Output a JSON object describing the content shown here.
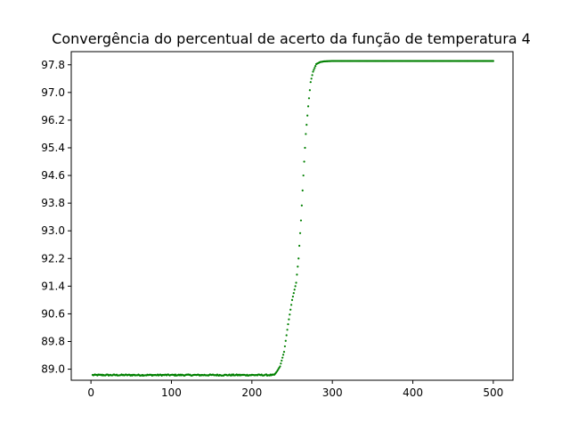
{
  "chart_data": {
    "type": "scatter",
    "title": "Convergência do percentual de acerto da função de temperatura 4",
    "xlabel": "",
    "ylabel": "",
    "xlim": [
      -24.5,
      524.5
    ],
    "ylim": [
      88.68,
      98.18
    ],
    "x_ticks": [
      0,
      100,
      200,
      300,
      400,
      500
    ],
    "x_tick_labels": [
      "0",
      "100",
      "200",
      "300",
      "400",
      "500"
    ],
    "y_ticks": [
      89.0,
      89.8,
      90.6,
      91.4,
      92.2,
      93.0,
      93.8,
      94.6,
      95.4,
      96.2,
      97.0,
      97.8
    ],
    "y_tick_labels": [
      "89.0",
      "89.8",
      "90.6",
      "91.4",
      "92.2",
      "93.0",
      "93.8",
      "94.6",
      "95.4",
      "96.2",
      "97.0",
      "97.8"
    ],
    "grid": false,
    "marker_color": "#008000",
    "series": [
      {
        "anchors": [
          [
            228,
            88.84
          ],
          [
            231,
            88.93
          ],
          [
            235,
            89.08
          ],
          [
            240,
            89.5
          ],
          [
            245,
            90.3
          ],
          [
            250,
            91.0
          ],
          [
            255,
            91.5
          ],
          [
            258,
            92.2
          ],
          [
            261,
            93.3
          ],
          [
            264,
            94.6
          ],
          [
            267,
            95.8
          ],
          [
            270,
            96.6
          ],
          [
            273,
            97.3
          ],
          [
            276,
            97.6
          ],
          [
            280,
            97.82
          ],
          [
            285,
            97.88
          ],
          [
            290,
            97.9
          ],
          [
            300,
            97.91
          ],
          [
            500,
            97.91
          ]
        ],
        "plateau": {
          "x_start": 2,
          "x_end": 227,
          "y": 88.83,
          "noise": 0.018
        }
      }
    ]
  }
}
